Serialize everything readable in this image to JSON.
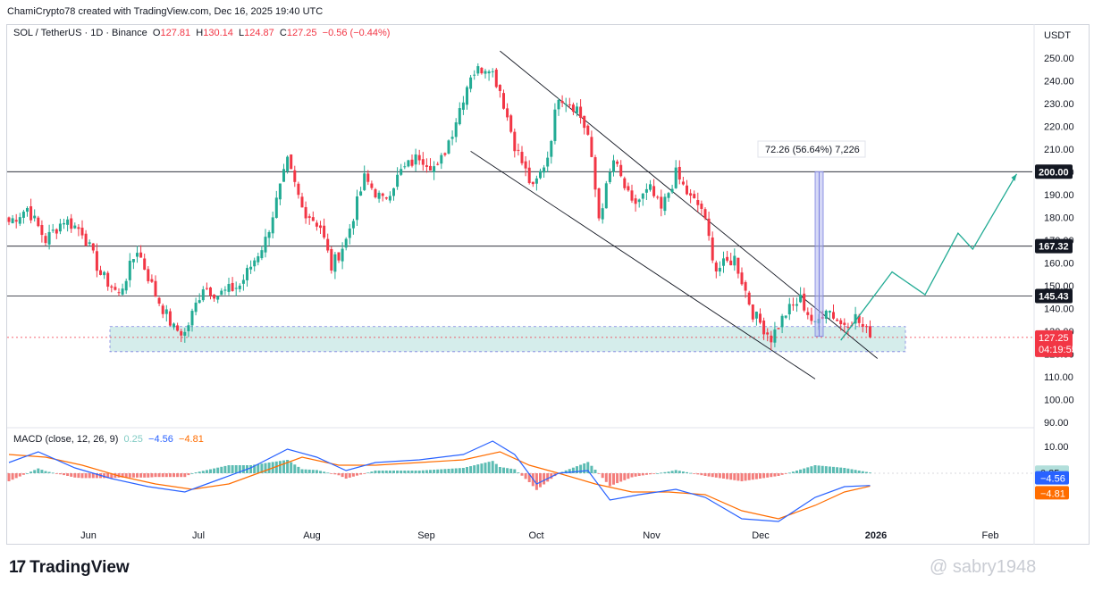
{
  "header": {
    "credit": "ChamiCrypto78 created with TradingView.com, Dec 16, 2025 19:40 UTC",
    "symbol": "SOL / TetherUS · 1D · Binance",
    "o_label": "O",
    "o": "127.81",
    "h_label": "H",
    "h": "130.14",
    "l_label": "L",
    "l": "124.87",
    "c_label": "C",
    "c": "127.25",
    "change": "−0.56 (−0.44%)"
  },
  "colors": {
    "up": "#22ab94",
    "down": "#f23645",
    "macd": "#2962ff",
    "signal": "#ff6d00",
    "zone": "#b2dfdb",
    "measure": "#7b7fe0",
    "projection": "#22ab94"
  },
  "footer": {
    "brand": "TradingView",
    "watermark": "@ sabry1948"
  },
  "chart_data": {
    "type": "candlestick",
    "currency": "USDT",
    "price_axis": {
      "ticks": [
        "250.00",
        "240.00",
        "230.00",
        "220.00",
        "210.00",
        "200.00",
        "190.00",
        "180.00",
        "170.00",
        "160.00",
        "150.00",
        "140.00",
        "130.00",
        "120.00",
        "110.00",
        "100.00",
        "90.00"
      ],
      "range": [
        88,
        255
      ]
    },
    "time_axis": [
      "Jun",
      "Jul",
      "Aug",
      "Sep",
      "Oct",
      "Nov",
      "Dec",
      "2026",
      "Feb"
    ],
    "horizontal_levels": [
      {
        "value": 200.0,
        "label": "200.00"
      },
      {
        "value": 167.32,
        "label": "167.32"
      },
      {
        "value": 145.43,
        "label": "145.43"
      }
    ],
    "current_price": {
      "value": 127.25,
      "label": "127.25",
      "countdown": "04:19:55"
    },
    "support_zone": {
      "top": 132,
      "bottom": 121
    },
    "measure_annotation": {
      "text": "72.26 (56.64%) 7,226",
      "from": 127.7,
      "to": 200.0
    },
    "channel": {
      "upper": [
        {
          "t": 134,
          "p": 253
        },
        {
          "t": 237,
          "p": 118
        }
      ],
      "lower": [
        {
          "t": 126,
          "p": 209
        },
        {
          "t": 220,
          "p": 109
        }
      ]
    },
    "projection_path": [
      {
        "t": 227,
        "p": 126
      },
      {
        "t": 241,
        "p": 156
      },
      {
        "t": 250,
        "p": 146
      },
      {
        "t": 259,
        "p": 173
      },
      {
        "t": 263,
        "p": 166
      },
      {
        "t": 275,
        "p": 199
      }
    ],
    "anchors": [
      {
        "t": 0,
        "p": 178
      },
      {
        "t": 5,
        "p": 184
      },
      {
        "t": 10,
        "p": 170
      },
      {
        "t": 15,
        "p": 179
      },
      {
        "t": 20,
        "p": 174
      },
      {
        "t": 25,
        "p": 155
      },
      {
        "t": 30,
        "p": 146
      },
      {
        "t": 35,
        "p": 166
      },
      {
        "t": 40,
        "p": 146
      },
      {
        "t": 45,
        "p": 131
      },
      {
        "t": 48,
        "p": 129
      },
      {
        "t": 53,
        "p": 150
      },
      {
        "t": 57,
        "p": 146
      },
      {
        "t": 63,
        "p": 150
      },
      {
        "t": 70,
        "p": 170
      },
      {
        "t": 76,
        "p": 204
      },
      {
        "t": 80,
        "p": 184
      },
      {
        "t": 85,
        "p": 176
      },
      {
        "t": 88,
        "p": 158
      },
      {
        "t": 92,
        "p": 170
      },
      {
        "t": 97,
        "p": 197
      },
      {
        "t": 102,
        "p": 187
      },
      {
        "t": 107,
        "p": 200
      },
      {
        "t": 112,
        "p": 207
      },
      {
        "t": 117,
        "p": 201
      },
      {
        "t": 121,
        "p": 218
      },
      {
        "t": 126,
        "p": 243
      },
      {
        "t": 131,
        "p": 247
      },
      {
        "t": 134,
        "p": 236
      },
      {
        "t": 138,
        "p": 212
      },
      {
        "t": 143,
        "p": 192
      },
      {
        "t": 147,
        "p": 207
      },
      {
        "t": 150,
        "p": 234
      },
      {
        "t": 155,
        "p": 228
      },
      {
        "t": 158,
        "p": 216
      },
      {
        "t": 161,
        "p": 180
      },
      {
        "t": 165,
        "p": 205
      },
      {
        "t": 170,
        "p": 185
      },
      {
        "t": 175,
        "p": 192
      },
      {
        "t": 178,
        "p": 183
      },
      {
        "t": 182,
        "p": 199
      },
      {
        "t": 186,
        "p": 188
      },
      {
        "t": 189,
        "p": 184
      },
      {
        "t": 193,
        "p": 157
      },
      {
        "t": 198,
        "p": 162
      },
      {
        "t": 203,
        "p": 138
      },
      {
        "t": 208,
        "p": 127
      },
      {
        "t": 212,
        "p": 138
      },
      {
        "t": 216,
        "p": 144
      },
      {
        "t": 220,
        "p": 132
      },
      {
        "t": 223,
        "p": 141
      },
      {
        "t": 227,
        "p": 133
      },
      {
        "t": 231,
        "p": 136
      },
      {
        "t": 235,
        "p": 127.25
      }
    ],
    "macd": {
      "label": "MACD (close, 12, 26, 9)",
      "histogram_value": "0.25",
      "macd_value": "−4.56",
      "signal_value": "−4.81",
      "y_ticks": [
        "10.00"
      ],
      "macd_line": [
        {
          "t": 0,
          "v": 4
        },
        {
          "t": 8,
          "v": 8
        },
        {
          "t": 18,
          "v": 2
        },
        {
          "t": 28,
          "v": -2
        },
        {
          "t": 38,
          "v": -5
        },
        {
          "t": 48,
          "v": -7
        },
        {
          "t": 58,
          "v": -2
        },
        {
          "t": 66,
          "v": 2
        },
        {
          "t": 76,
          "v": 9
        },
        {
          "t": 84,
          "v": 6
        },
        {
          "t": 92,
          "v": 1
        },
        {
          "t": 100,
          "v": 4
        },
        {
          "t": 112,
          "v": 5
        },
        {
          "t": 124,
          "v": 7
        },
        {
          "t": 132,
          "v": 12
        },
        {
          "t": 138,
          "v": 7
        },
        {
          "t": 144,
          "v": -4
        },
        {
          "t": 150,
          "v": 0
        },
        {
          "t": 158,
          "v": 1
        },
        {
          "t": 164,
          "v": -10
        },
        {
          "t": 172,
          "v": -8
        },
        {
          "t": 182,
          "v": -6
        },
        {
          "t": 190,
          "v": -9
        },
        {
          "t": 200,
          "v": -17
        },
        {
          "t": 210,
          "v": -18
        },
        {
          "t": 220,
          "v": -9
        },
        {
          "t": 228,
          "v": -5
        },
        {
          "t": 235,
          "v": -4.56
        }
      ],
      "signal_line": [
        {
          "t": 0,
          "v": 7
        },
        {
          "t": 10,
          "v": 6
        },
        {
          "t": 20,
          "v": 3
        },
        {
          "t": 30,
          "v": -1
        },
        {
          "t": 40,
          "v": -4
        },
        {
          "t": 50,
          "v": -6
        },
        {
          "t": 60,
          "v": -4
        },
        {
          "t": 70,
          "v": 1
        },
        {
          "t": 80,
          "v": 6
        },
        {
          "t": 90,
          "v": 3
        },
        {
          "t": 100,
          "v": 3
        },
        {
          "t": 112,
          "v": 4
        },
        {
          "t": 124,
          "v": 5
        },
        {
          "t": 134,
          "v": 8
        },
        {
          "t": 142,
          "v": 3
        },
        {
          "t": 150,
          "v": 0
        },
        {
          "t": 160,
          "v": -4
        },
        {
          "t": 170,
          "v": -7
        },
        {
          "t": 180,
          "v": -7
        },
        {
          "t": 190,
          "v": -8
        },
        {
          "t": 200,
          "v": -14
        },
        {
          "t": 210,
          "v": -17
        },
        {
          "t": 220,
          "v": -12
        },
        {
          "t": 228,
          "v": -7
        },
        {
          "t": 235,
          "v": -4.81
        }
      ]
    }
  }
}
